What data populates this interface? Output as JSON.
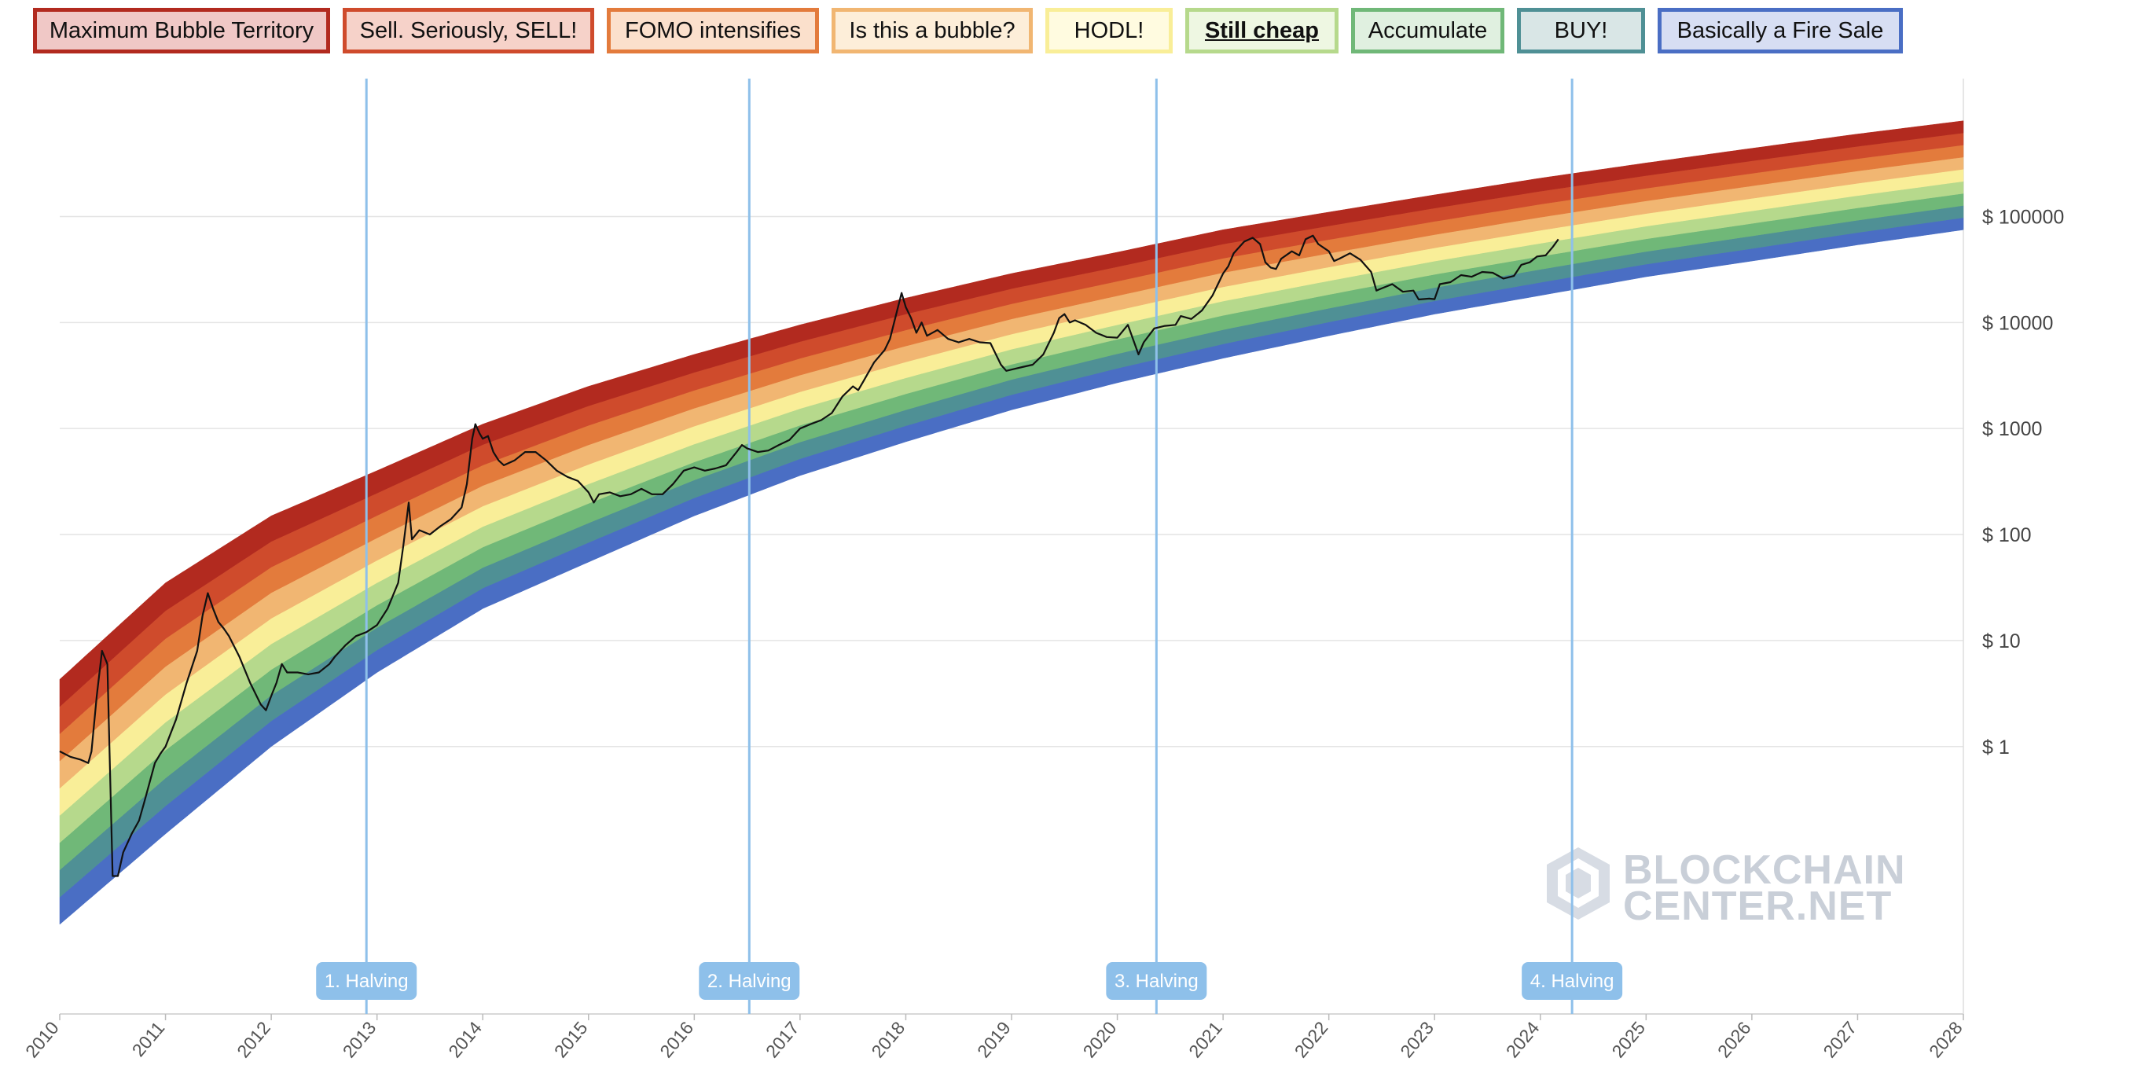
{
  "legend": [
    {
      "label": "Maximum Bubble Territory",
      "color": "#b22a1f",
      "bg": "#f0c8c6",
      "active": false
    },
    {
      "label": "Sell. Seriously, SELL!",
      "color": "#cf4b2c",
      "bg": "#f6d2c9",
      "active": false
    },
    {
      "label": "FOMO intensifies",
      "color": "#e37b3c",
      "bg": "#fbe0cc",
      "active": false
    },
    {
      "label": "Is this a bubble?",
      "color": "#f1b672",
      "bg": "#fdeed9",
      "active": false
    },
    {
      "label": "HODL!",
      "color": "#f9ee98",
      "bg": "#fffbe0",
      "active": false
    },
    {
      "label": "Still cheap",
      "color": "#b6d98c",
      "bg": "#eef7e2",
      "active": true
    },
    {
      "label": "Accumulate",
      "color": "#70b878",
      "bg": "#e0f0e0",
      "active": false
    },
    {
      "label": "BUY!",
      "color": "#4f9095",
      "bg": "#d9e6e6",
      "active": false
    },
    {
      "label": "Basically a Fire Sale",
      "color": "#4a6ec4",
      "bg": "#d7def3",
      "active": false
    }
  ],
  "watermark": {
    "line1": "BLOCKCHAIN",
    "line2": "CENTER.NET"
  },
  "chart_data": {
    "type": "line",
    "title": "",
    "xlabel": "",
    "ylabel": "",
    "y_scale": "log",
    "ylim": [
      0.003,
      2000000
    ],
    "xlim": [
      2010.0,
      2028.0
    ],
    "grid": true,
    "y_ticks": [
      {
        "value": 1,
        "label": "$ 1"
      },
      {
        "value": 10,
        "label": "$ 10"
      },
      {
        "value": 100,
        "label": "$ 100"
      },
      {
        "value": 1000,
        "label": "$ 1000"
      },
      {
        "value": 10000,
        "label": "$ 10000"
      },
      {
        "value": 100000,
        "label": "$ 100000"
      }
    ],
    "x_ticks": [
      "2010",
      "2011",
      "2012",
      "2013",
      "2014",
      "2015",
      "2016",
      "2017",
      "2018",
      "2019",
      "2020",
      "2021",
      "2022",
      "2023",
      "2024",
      "2025",
      "2026",
      "2027",
      "2028"
    ],
    "rainbow_bands": [
      {
        "name": "Basically a Fire Sale",
        "color": "#4a6ec4"
      },
      {
        "name": "BUY!",
        "color": "#4f9095"
      },
      {
        "name": "Accumulate",
        "color": "#70b878"
      },
      {
        "name": "Still cheap",
        "color": "#b6d98c"
      },
      {
        "name": "HODL!",
        "color": "#f9ee98"
      },
      {
        "name": "Is this a bubble?",
        "color": "#f1b672"
      },
      {
        "name": "FOMO intensifies",
        "color": "#e37b3c"
      },
      {
        "name": "Sell. Seriously, SELL!",
        "color": "#cf4b2c"
      },
      {
        "name": "Maximum Bubble Territory",
        "color": "#b22a1f"
      }
    ],
    "rainbow_bottom": [
      [
        2010.0,
        0.021
      ],
      [
        2011.0,
        0.15
      ],
      [
        2012.0,
        1.0
      ],
      [
        2013.0,
        5.0
      ],
      [
        2014.0,
        20
      ],
      [
        2015.0,
        55
      ],
      [
        2016.0,
        150
      ],
      [
        2017.0,
        360
      ],
      [
        2018.0,
        750
      ],
      [
        2019.0,
        1500
      ],
      [
        2020.0,
        2700
      ],
      [
        2021.0,
        4600
      ],
      [
        2022.0,
        7500
      ],
      [
        2023.0,
        12000
      ],
      [
        2024.0,
        18000
      ],
      [
        2025.0,
        27000
      ],
      [
        2026.0,
        38000
      ],
      [
        2027.0,
        54000
      ],
      [
        2028.0,
        75000
      ]
    ],
    "rainbow_top": [
      [
        2010.0,
        4.3
      ],
      [
        2011.0,
        35
      ],
      [
        2012.0,
        150
      ],
      [
        2013.0,
        400
      ],
      [
        2014.0,
        1100
      ],
      [
        2015.0,
        2500
      ],
      [
        2016.0,
        5000
      ],
      [
        2017.0,
        9500
      ],
      [
        2018.0,
        17000
      ],
      [
        2019.0,
        29000
      ],
      [
        2020.0,
        46000
      ],
      [
        2021.0,
        75000
      ],
      [
        2022.0,
        110000
      ],
      [
        2023.0,
        160000
      ],
      [
        2024.0,
        230000
      ],
      [
        2025.0,
        320000
      ],
      [
        2026.0,
        440000
      ],
      [
        2027.0,
        600000
      ],
      [
        2028.0,
        800000
      ]
    ],
    "series": [
      {
        "color": "#111111",
        "points": [
          [
            2010.0,
            0.9
          ],
          [
            2010.1,
            0.8
          ],
          [
            2010.2,
            0.75
          ],
          [
            2010.27,
            0.7
          ],
          [
            2010.3,
            0.9
          ],
          [
            2010.35,
            3
          ],
          [
            2010.4,
            8
          ],
          [
            2010.45,
            6
          ],
          [
            2010.5,
            0.06
          ],
          [
            2010.55,
            0.06
          ],
          [
            2010.6,
            0.1
          ],
          [
            2010.68,
            0.15
          ],
          [
            2010.75,
            0.2
          ],
          [
            2010.8,
            0.3
          ],
          [
            2010.9,
            0.7
          ],
          [
            2010.95,
            0.85
          ],
          [
            2011.0,
            1.0
          ],
          [
            2011.1,
            1.8
          ],
          [
            2011.2,
            4
          ],
          [
            2011.3,
            8
          ],
          [
            2011.35,
            17
          ],
          [
            2011.4,
            28
          ],
          [
            2011.45,
            20
          ],
          [
            2011.5,
            15
          ],
          [
            2011.55,
            13
          ],
          [
            2011.6,
            11
          ],
          [
            2011.7,
            7
          ],
          [
            2011.8,
            4
          ],
          [
            2011.9,
            2.5
          ],
          [
            2011.95,
            2.2
          ],
          [
            2012.0,
            3
          ],
          [
            2012.05,
            4
          ],
          [
            2012.1,
            6
          ],
          [
            2012.15,
            5
          ],
          [
            2012.25,
            5
          ],
          [
            2012.35,
            4.8
          ],
          [
            2012.45,
            5
          ],
          [
            2012.55,
            6
          ],
          [
            2012.6,
            7
          ],
          [
            2012.7,
            9
          ],
          [
            2012.8,
            11
          ],
          [
            2012.9,
            12
          ],
          [
            2013.0,
            14
          ],
          [
            2013.1,
            20
          ],
          [
            2013.2,
            35
          ],
          [
            2013.25,
            80
          ],
          [
            2013.3,
            200
          ],
          [
            2013.33,
            90
          ],
          [
            2013.4,
            110
          ],
          [
            2013.5,
            100
          ],
          [
            2013.6,
            120
          ],
          [
            2013.7,
            140
          ],
          [
            2013.8,
            180
          ],
          [
            2013.85,
            300
          ],
          [
            2013.9,
            800
          ],
          [
            2013.93,
            1100
          ],
          [
            2013.97,
            900
          ],
          [
            2014.0,
            800
          ],
          [
            2014.05,
            850
          ],
          [
            2014.1,
            600
          ],
          [
            2014.15,
            500
          ],
          [
            2014.2,
            450
          ],
          [
            2014.3,
            500
          ],
          [
            2014.4,
            600
          ],
          [
            2014.5,
            600
          ],
          [
            2014.6,
            500
          ],
          [
            2014.7,
            400
          ],
          [
            2014.8,
            350
          ],
          [
            2014.9,
            320
          ],
          [
            2015.0,
            250
          ],
          [
            2015.05,
            200
          ],
          [
            2015.1,
            240
          ],
          [
            2015.2,
            250
          ],
          [
            2015.3,
            230
          ],
          [
            2015.4,
            240
          ],
          [
            2015.5,
            270
          ],
          [
            2015.6,
            240
          ],
          [
            2015.7,
            240
          ],
          [
            2015.8,
            300
          ],
          [
            2015.9,
            400
          ],
          [
            2016.0,
            430
          ],
          [
            2016.1,
            400
          ],
          [
            2016.2,
            420
          ],
          [
            2016.3,
            450
          ],
          [
            2016.4,
            600
          ],
          [
            2016.45,
            700
          ],
          [
            2016.5,
            650
          ],
          [
            2016.6,
            600
          ],
          [
            2016.7,
            620
          ],
          [
            2016.8,
            700
          ],
          [
            2016.9,
            780
          ],
          [
            2017.0,
            1000
          ],
          [
            2017.1,
            1100
          ],
          [
            2017.2,
            1200
          ],
          [
            2017.3,
            1400
          ],
          [
            2017.4,
            2000
          ],
          [
            2017.5,
            2500
          ],
          [
            2017.55,
            2300
          ],
          [
            2017.6,
            2800
          ],
          [
            2017.7,
            4200
          ],
          [
            2017.8,
            5500
          ],
          [
            2017.85,
            7000
          ],
          [
            2017.9,
            11000
          ],
          [
            2017.96,
            19000
          ],
          [
            2018.0,
            14000
          ],
          [
            2018.05,
            11000
          ],
          [
            2018.1,
            8000
          ],
          [
            2018.15,
            10000
          ],
          [
            2018.2,
            7500
          ],
          [
            2018.3,
            8500
          ],
          [
            2018.4,
            7000
          ],
          [
            2018.5,
            6500
          ],
          [
            2018.6,
            7000
          ],
          [
            2018.7,
            6500
          ],
          [
            2018.8,
            6400
          ],
          [
            2018.9,
            4000
          ],
          [
            2018.95,
            3500
          ],
          [
            2019.0,
            3600
          ],
          [
            2019.1,
            3800
          ],
          [
            2019.2,
            4000
          ],
          [
            2019.3,
            5000
          ],
          [
            2019.4,
            8000
          ],
          [
            2019.45,
            11000
          ],
          [
            2019.5,
            12000
          ],
          [
            2019.55,
            10000
          ],
          [
            2019.6,
            10500
          ],
          [
            2019.7,
            9500
          ],
          [
            2019.8,
            8000
          ],
          [
            2019.9,
            7300
          ],
          [
            2020.0,
            7200
          ],
          [
            2020.1,
            9500
          ],
          [
            2020.2,
            5000
          ],
          [
            2020.25,
            6500
          ],
          [
            2020.35,
            8800
          ],
          [
            2020.45,
            9300
          ],
          [
            2020.55,
            9500
          ],
          [
            2020.6,
            11500
          ],
          [
            2020.7,
            10800
          ],
          [
            2020.8,
            13000
          ],
          [
            2020.9,
            18000
          ],
          [
            2021.0,
            29000
          ],
          [
            2021.05,
            34000
          ],
          [
            2021.1,
            45000
          ],
          [
            2021.2,
            58000
          ],
          [
            2021.28,
            63000
          ],
          [
            2021.35,
            55000
          ],
          [
            2021.4,
            37000
          ],
          [
            2021.45,
            33000
          ],
          [
            2021.5,
            32000
          ],
          [
            2021.55,
            40000
          ],
          [
            2021.65,
            47000
          ],
          [
            2021.72,
            43000
          ],
          [
            2021.78,
            61000
          ],
          [
            2021.85,
            66000
          ],
          [
            2021.9,
            55000
          ],
          [
            2022.0,
            47000
          ],
          [
            2022.05,
            38000
          ],
          [
            2022.1,
            40000
          ],
          [
            2022.2,
            45000
          ],
          [
            2022.3,
            39000
          ],
          [
            2022.4,
            30000
          ],
          [
            2022.45,
            20000
          ],
          [
            2022.5,
            21000
          ],
          [
            2022.6,
            23000
          ],
          [
            2022.7,
            19500
          ],
          [
            2022.8,
            20000
          ],
          [
            2022.85,
            16500
          ],
          [
            2022.95,
            16800
          ],
          [
            2023.0,
            16600
          ],
          [
            2023.05,
            23000
          ],
          [
            2023.15,
            24000
          ],
          [
            2023.25,
            28000
          ],
          [
            2023.35,
            27000
          ],
          [
            2023.45,
            30000
          ],
          [
            2023.55,
            29500
          ],
          [
            2023.65,
            26000
          ],
          [
            2023.75,
            27500
          ],
          [
            2023.82,
            35000
          ],
          [
            2023.9,
            37000
          ],
          [
            2023.97,
            42000
          ],
          [
            2024.05,
            43000
          ],
          [
            2024.12,
            52000
          ],
          [
            2024.17,
            61000
          ]
        ]
      }
    ],
    "halvings": [
      {
        "x": 2012.9,
        "label": "1. Halving"
      },
      {
        "x": 2016.52,
        "label": "2. Halving"
      },
      {
        "x": 2020.37,
        "label": "3. Halving"
      },
      {
        "x": 2024.3,
        "label": "4. Halving"
      }
    ]
  }
}
